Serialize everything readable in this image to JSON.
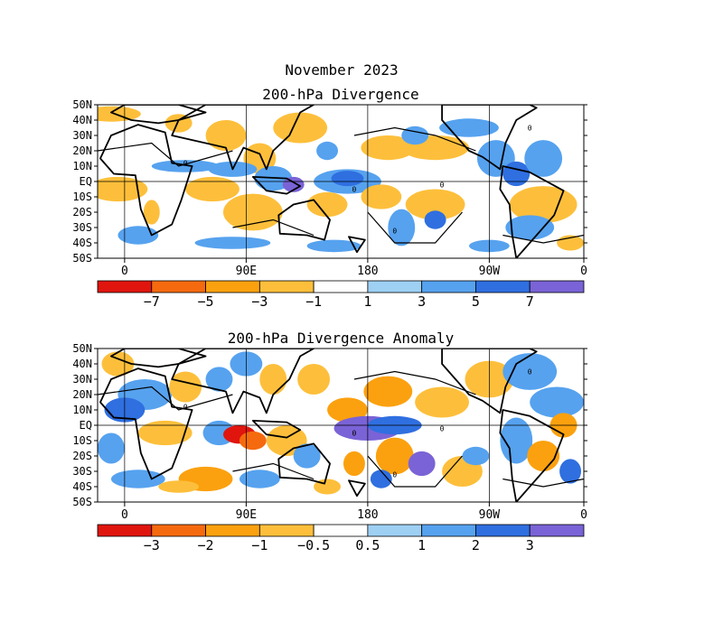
{
  "title": "November 2023",
  "panels": [
    {
      "title": "200-hPa Divergence",
      "colorbar_labels": [
        "−7",
        "−5",
        "−3",
        "−1",
        "1",
        "3",
        "5",
        "7"
      ]
    },
    {
      "title": "200-hPa Divergence Anomaly",
      "colorbar_labels": [
        "−3",
        "−2",
        "−1",
        "−0.5",
        "0.5",
        "1",
        "2",
        "3"
      ]
    }
  ],
  "lat_labels": [
    "50N",
    "40N",
    "30N",
    "20N",
    "10N",
    "EQ",
    "10S",
    "20S",
    "30S",
    "40S",
    "50S"
  ],
  "lon_labels": [
    "0",
    "90E",
    "180",
    "90W",
    "0"
  ],
  "colorbar_colors": [
    "#e0150e",
    "#f56a0e",
    "#fba10f",
    "#fdbf3b",
    "#ffffff",
    "#9ed0f4",
    "#56a2ef",
    "#2f6fe0",
    "#7a63d6"
  ],
  "contour_label": "0"
}
